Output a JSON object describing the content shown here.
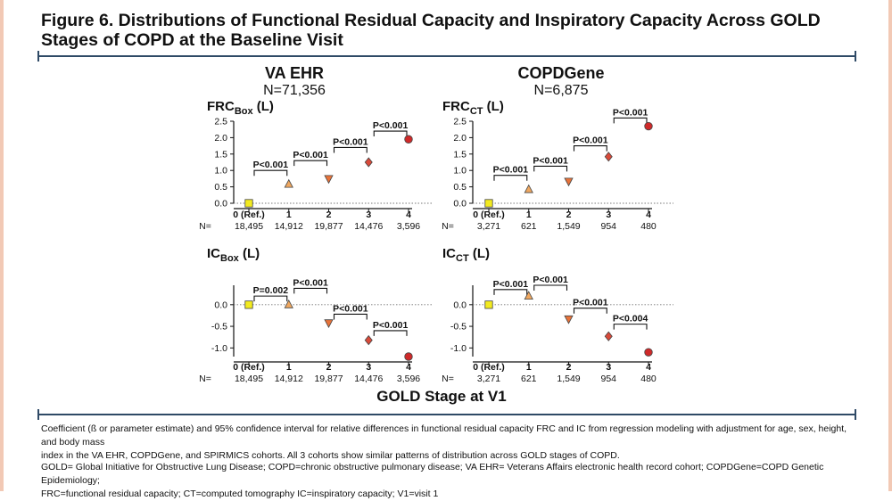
{
  "figure": {
    "title_line1": "Figure 6. Distributions of Functional Residual Capacity and Inspiratory Capacity Across GOLD",
    "title_line2": "Stages of COPD at the Baseline Visit",
    "x_axis_title": "GOLD Stage at V1",
    "n_prefix": "N=",
    "footnote1_line1": "Coefficient (ß or parameter estimate) and 95% confidence interval for relative differences in functional residual capacity FRC and IC from regression modeling with adjustment for age, sex, height, and body mass",
    "footnote1_line2": "index in the VA EHR, COPDGene, and SPIRMICS cohorts. All 3 cohorts show similar patterns of distribution across GOLD stages of COPD.",
    "footnote2_line1": "GOLD= Global Initiative for Obstructive Lung Disease; COPD=chronic obstructive pulmonary disease; VA EHR= Veterans Affairs electronic health record cohort; COPDGene=COPD Genetic Epidemiology;",
    "footnote2_line2": "FRC=functional residual capacity; CT=computed tomography IC=inspiratory capacity; V1=visit 1"
  },
  "columns": [
    {
      "title": "VA EHR",
      "subtitle": "N=71,356"
    },
    {
      "title": "COPDGene",
      "subtitle": "N=6,875"
    }
  ],
  "marker_colors": [
    "#f2ea1f",
    "#f0a860",
    "#e8733a",
    "#d94a3a",
    "#cf2a2a"
  ],
  "marker_shapes": [
    "square",
    "triangle-up",
    "triangle-down",
    "diamond",
    "circle"
  ],
  "chart_data": [
    {
      "type": "scatter",
      "title_main": "FRC",
      "title_sub": "Box",
      "title_unit": " (L)",
      "categories": [
        "0 (Ref.)",
        "1",
        "2",
        "3",
        "4"
      ],
      "n_values": [
        "18,495",
        "14,912",
        "19,877",
        "14,476",
        "3,596"
      ],
      "values": [
        0.0,
        0.58,
        0.75,
        1.25,
        1.95
      ],
      "err": [
        0.02,
        0.02,
        0.02,
        0.02,
        0.03
      ],
      "ylim": [
        0.0,
        2.5
      ],
      "yticks": [
        "0.0",
        "0.5",
        "1.0",
        "1.5",
        "2.0",
        "2.5"
      ],
      "ytick_values": [
        0.0,
        0.5,
        1.0,
        1.5,
        2.0,
        2.5
      ],
      "brackets": [
        {
          "from": 0,
          "to": 1,
          "y": 1.0,
          "label": "P<0.001"
        },
        {
          "from": 1,
          "to": 2,
          "y": 1.3,
          "label": "P<0.001"
        },
        {
          "from": 2,
          "to": 3,
          "y": 1.7,
          "label": "P<0.001"
        },
        {
          "from": 3,
          "to": 4,
          "y": 2.2,
          "label": "P<0.001"
        }
      ]
    },
    {
      "type": "scatter",
      "title_main": "FRC",
      "title_sub": "CT",
      "title_unit": " (L)",
      "categories": [
        "0 (Ref.)",
        "1",
        "2",
        "3",
        "4"
      ],
      "n_values": [
        "3,271",
        "621",
        "1,549",
        "954",
        "480"
      ],
      "values": [
        0.0,
        0.42,
        0.67,
        1.42,
        2.35
      ],
      "err": [
        0.02,
        0.03,
        0.04,
        0.05,
        0.07
      ],
      "ylim": [
        0.0,
        2.5
      ],
      "yticks": [
        "0.0",
        "0.5",
        "1.0",
        "1.5",
        "2.0",
        "2.5"
      ],
      "ytick_values": [
        0.0,
        0.5,
        1.0,
        1.5,
        2.0,
        2.5
      ],
      "brackets": [
        {
          "from": 0,
          "to": 1,
          "y": 0.85,
          "label": "P<0.001"
        },
        {
          "from": 1,
          "to": 2,
          "y": 1.13,
          "label": "P<0.001"
        },
        {
          "from": 2,
          "to": 3,
          "y": 1.75,
          "label": "P<0.001"
        },
        {
          "from": 3,
          "to": 4,
          "y": 2.6,
          "label": "P<0.001"
        }
      ]
    },
    {
      "type": "scatter",
      "title_main": "IC",
      "title_sub": "Box",
      "title_unit": " (L)",
      "categories": [
        "0 (Ref.)",
        "1",
        "2",
        "3",
        "4"
      ],
      "n_values": [
        "18,495",
        "14,912",
        "19,877",
        "14,476",
        "3,596"
      ],
      "values": [
        0.0,
        0.0,
        -0.42,
        -0.82,
        -1.2
      ],
      "err": [
        0.02,
        0.02,
        0.02,
        0.02,
        0.03
      ],
      "ylim": [
        -1.2,
        0.45
      ],
      "yticks": [
        "0.0",
        "-0.5",
        "-1.0"
      ],
      "ytick_values": [
        0.0,
        -0.5,
        -1.0
      ],
      "brackets": [
        {
          "from": 0,
          "to": 1,
          "y": 0.2,
          "label": "P=0.002"
        },
        {
          "from": 1,
          "to": 2,
          "y": 0.38,
          "label": "P<0.001"
        },
        {
          "from": 2,
          "to": 3,
          "y": -0.22,
          "label": "P<0.001"
        },
        {
          "from": 3,
          "to": 4,
          "y": -0.6,
          "label": "P<0.001"
        }
      ]
    },
    {
      "type": "scatter",
      "title_main": "IC",
      "title_sub": "CT",
      "title_unit": " (L)",
      "categories": [
        "0 (Ref.)",
        "1",
        "2",
        "3",
        "4"
      ],
      "n_values": [
        "3,271",
        "621",
        "1,549",
        "954",
        "480"
      ],
      "values": [
        0.0,
        0.2,
        -0.33,
        -0.73,
        -1.1
      ],
      "err": [
        0.02,
        0.04,
        0.04,
        0.05,
        0.06
      ],
      "ylim": [
        -1.2,
        0.45
      ],
      "yticks": [
        "0.0",
        "-0.5",
        "-1.0"
      ],
      "ytick_values": [
        0.0,
        -0.5,
        -1.0
      ],
      "brackets": [
        {
          "from": 0,
          "to": 1,
          "y": 0.35,
          "label": "P<0.001"
        },
        {
          "from": 1,
          "to": 2,
          "y": 0.45,
          "label": "P<0.001"
        },
        {
          "from": 2,
          "to": 3,
          "y": -0.08,
          "label": "P<0.001"
        },
        {
          "from": 3,
          "to": 4,
          "y": -0.45,
          "label": "P<0.004"
        }
      ]
    }
  ]
}
